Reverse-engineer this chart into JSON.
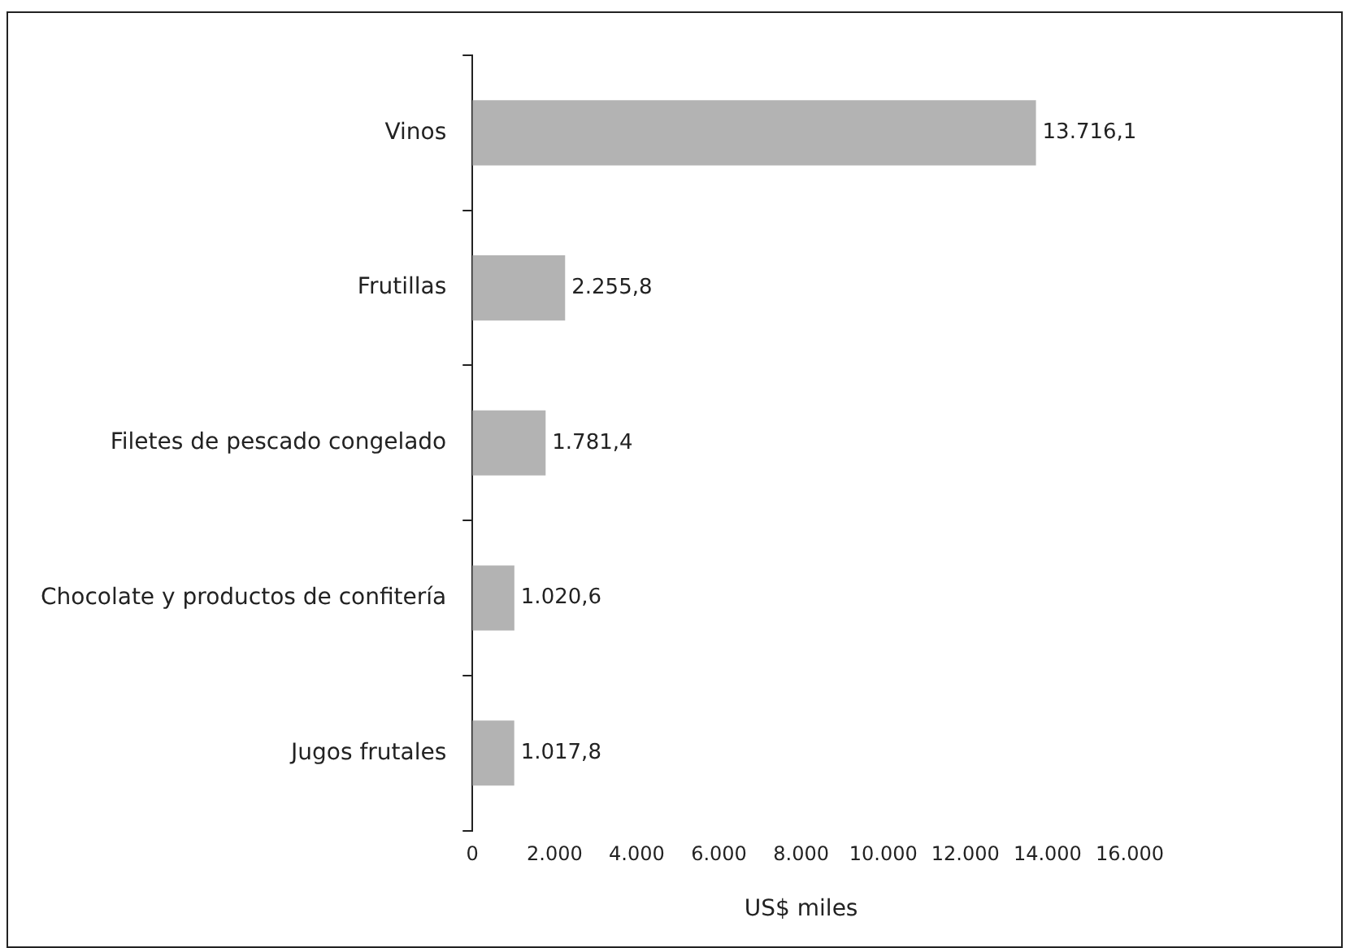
{
  "chart_data": {
    "type": "bar",
    "orientation": "horizontal",
    "categories": [
      "Vinos",
      "Frutillas",
      "Filetes de pescado congelado",
      "Chocolate y productos de confitería",
      "Jugos frutales"
    ],
    "values": [
      13716.1,
      2255.8,
      1781.4,
      1020.6,
      1017.8
    ],
    "value_labels": [
      "13.716,1",
      "2.255,8",
      "1.781,4",
      "1.020,6",
      "1.017,8"
    ],
    "color": "#b3b3b3",
    "xlim": [
      0,
      16000
    ],
    "xticks": [
      0,
      {
        "value": 2000,
        "label": "2.000"
      },
      {
        "value": 4000,
        "label": "4.000"
      },
      {
        "value": 6000,
        "label": "6.000"
      },
      {
        "value": 8000,
        "label": "8.000"
      },
      {
        "value": 10000,
        "label": "10.000"
      },
      {
        "value": 12000,
        "label": "12.000"
      },
      {
        "value": 14000,
        "label": "14.000"
      },
      {
        "value": 16000,
        "label": "16.000"
      }
    ],
    "xlabel": "US$ miles",
    "grid": false,
    "legend": false
  }
}
